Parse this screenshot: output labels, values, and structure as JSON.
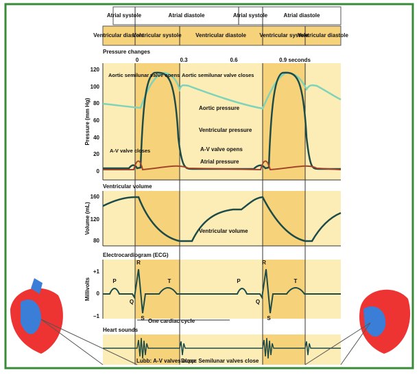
{
  "header": {
    "atrial": [
      "Atrial systole",
      "Atrial diastole",
      "Atrial systole",
      "Atrial diastole"
    ],
    "ventricular": [
      "Ventricular diastole",
      "Ventricular systole",
      "Ventricular diastole",
      "Ventricular systole",
      "Ventricular diastole"
    ]
  },
  "pressure": {
    "title": "Pressure changes",
    "times": [
      "0",
      "0.3",
      "0.6",
      "0.9 seconds"
    ],
    "y_label": "Pressure (mm Hg)",
    "ticks": [
      "120",
      "100",
      "80",
      "60",
      "40",
      "20",
      "0"
    ],
    "notes": [
      "Aortic semilunar valve opens",
      "Aortic semilunar valve closes",
      "Aortic pressure",
      "Ventricular pressure",
      "A-V valve opens",
      "Atrial pressure",
      "A-V valve closes"
    ]
  },
  "volume": {
    "title": "Ventricular volume",
    "y_label": "Volume (mL)",
    "ticks": [
      "160",
      "120",
      "80"
    ],
    "note": "Ventricular volume"
  },
  "ecg": {
    "title": "Electrocardiogram (ECG)",
    "y_label": "Millivolts",
    "ticks": [
      "+1",
      "0",
      "−1"
    ],
    "waves": [
      "P",
      "R",
      "Q",
      "S",
      "T",
      "P",
      "R",
      "Q",
      "S",
      "T"
    ],
    "cycle": "One cardiac cycle"
  },
  "sounds": {
    "title": "Heart sounds",
    "notes": [
      "Lubb: A-V valves close",
      "Dupp: Semilunar valves close"
    ]
  }
}
